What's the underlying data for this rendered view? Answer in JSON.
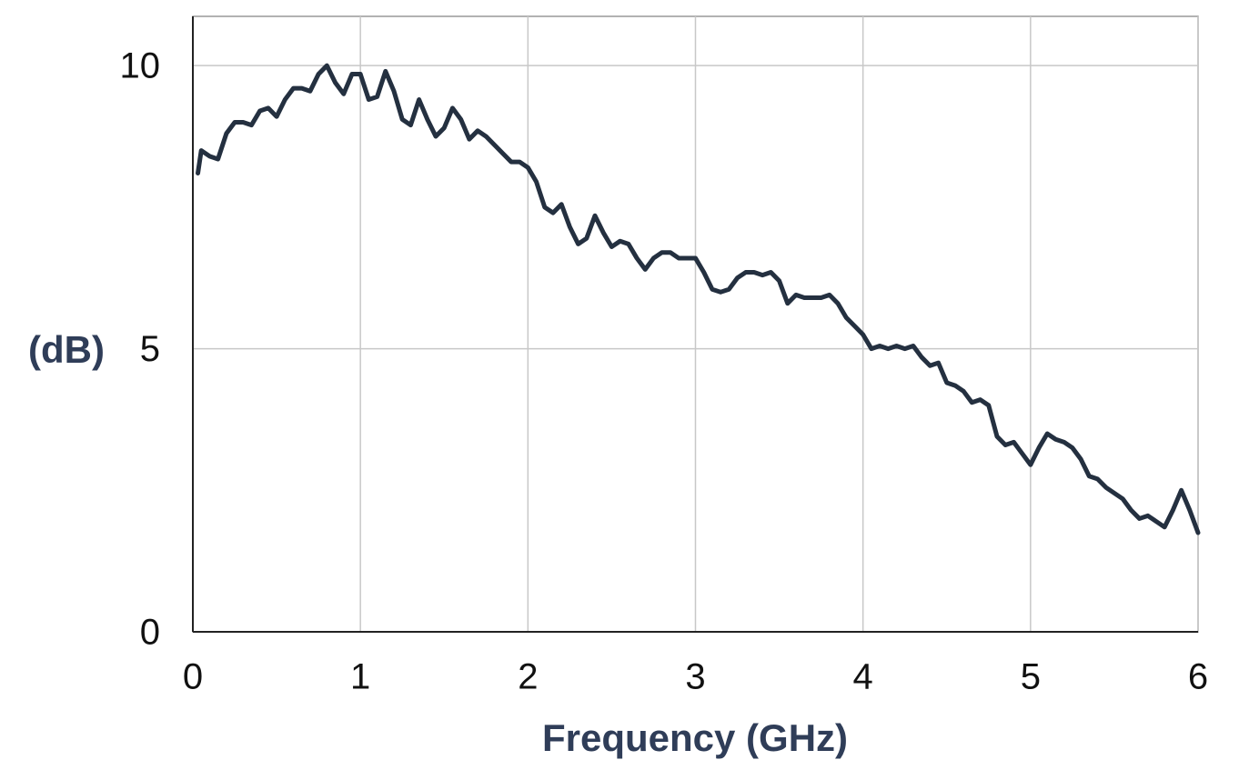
{
  "chart_data": {
    "type": "line",
    "x_label": "Frequency (GHz)",
    "y_label": "(dB)",
    "x": [
      0.03,
      0.05,
      0.1,
      0.15,
      0.2,
      0.25,
      0.3,
      0.35,
      0.4,
      0.45,
      0.5,
      0.55,
      0.6,
      0.65,
      0.7,
      0.75,
      0.8,
      0.85,
      0.9,
      0.95,
      1.0,
      1.05,
      1.1,
      1.15,
      1.2,
      1.25,
      1.3,
      1.35,
      1.4,
      1.45,
      1.5,
      1.55,
      1.6,
      1.65,
      1.7,
      1.75,
      1.8,
      1.85,
      1.9,
      1.95,
      2.0,
      2.05,
      2.1,
      2.15,
      2.2,
      2.25,
      2.3,
      2.35,
      2.4,
      2.45,
      2.5,
      2.55,
      2.6,
      2.65,
      2.7,
      2.75,
      2.8,
      2.85,
      2.9,
      2.95,
      3.0,
      3.05,
      3.1,
      3.15,
      3.2,
      3.25,
      3.3,
      3.35,
      3.4,
      3.45,
      3.5,
      3.55,
      3.6,
      3.65,
      3.7,
      3.75,
      3.8,
      3.85,
      3.9,
      3.95,
      4.0,
      4.05,
      4.1,
      4.15,
      4.2,
      4.25,
      4.3,
      4.35,
      4.4,
      4.45,
      4.5,
      4.55,
      4.6,
      4.65,
      4.7,
      4.75,
      4.8,
      4.85,
      4.9,
      4.95,
      5.0,
      5.05,
      5.1,
      5.15,
      5.2,
      5.25,
      5.3,
      5.35,
      5.4,
      5.45,
      5.5,
      5.55,
      5.6,
      5.65,
      5.7,
      5.75,
      5.8,
      5.85,
      5.9,
      5.95,
      6.0
    ],
    "series": [
      {
        "color": "#243040",
        "values": [
          8.1,
          8.5,
          8.4,
          8.35,
          8.8,
          9.0,
          9.0,
          8.95,
          9.2,
          9.25,
          9.1,
          9.4,
          9.6,
          9.6,
          9.55,
          9.85,
          10.0,
          9.7,
          9.5,
          9.85,
          9.85,
          9.4,
          9.45,
          9.9,
          9.55,
          9.05,
          8.95,
          9.4,
          9.05,
          8.75,
          8.9,
          9.25,
          9.05,
          8.7,
          8.85,
          8.75,
          8.6,
          8.45,
          8.3,
          8.3,
          8.2,
          7.95,
          7.5,
          7.4,
          7.55,
          7.15,
          6.85,
          6.95,
          7.35,
          7.05,
          6.8,
          6.9,
          6.85,
          6.6,
          6.4,
          6.6,
          6.7,
          6.7,
          6.6,
          6.6,
          6.6,
          6.35,
          6.05,
          6.0,
          6.05,
          6.25,
          6.35,
          6.35,
          6.3,
          6.35,
          6.2,
          5.8,
          5.95,
          5.9,
          5.9,
          5.9,
          5.95,
          5.8,
          5.55,
          5.4,
          5.25,
          5.0,
          5.05,
          5.0,
          5.05,
          5.0,
          5.05,
          4.85,
          4.7,
          4.75,
          4.4,
          4.35,
          4.25,
          4.05,
          4.1,
          4.0,
          3.45,
          3.3,
          3.35,
          3.15,
          2.95,
          3.25,
          3.5,
          3.4,
          3.35,
          3.25,
          3.05,
          2.75,
          2.7,
          2.55,
          2.45,
          2.35,
          2.15,
          2.0,
          2.05,
          1.95,
          1.85,
          2.15,
          2.5,
          2.15,
          1.75
        ]
      }
    ],
    "xlim": [
      0,
      6
    ],
    "xticks": [
      0,
      1,
      2,
      3,
      4,
      5,
      6
    ],
    "ylim": [
      0,
      10.87
    ],
    "yticks": [
      0,
      5,
      10
    ],
    "grid": true
  }
}
